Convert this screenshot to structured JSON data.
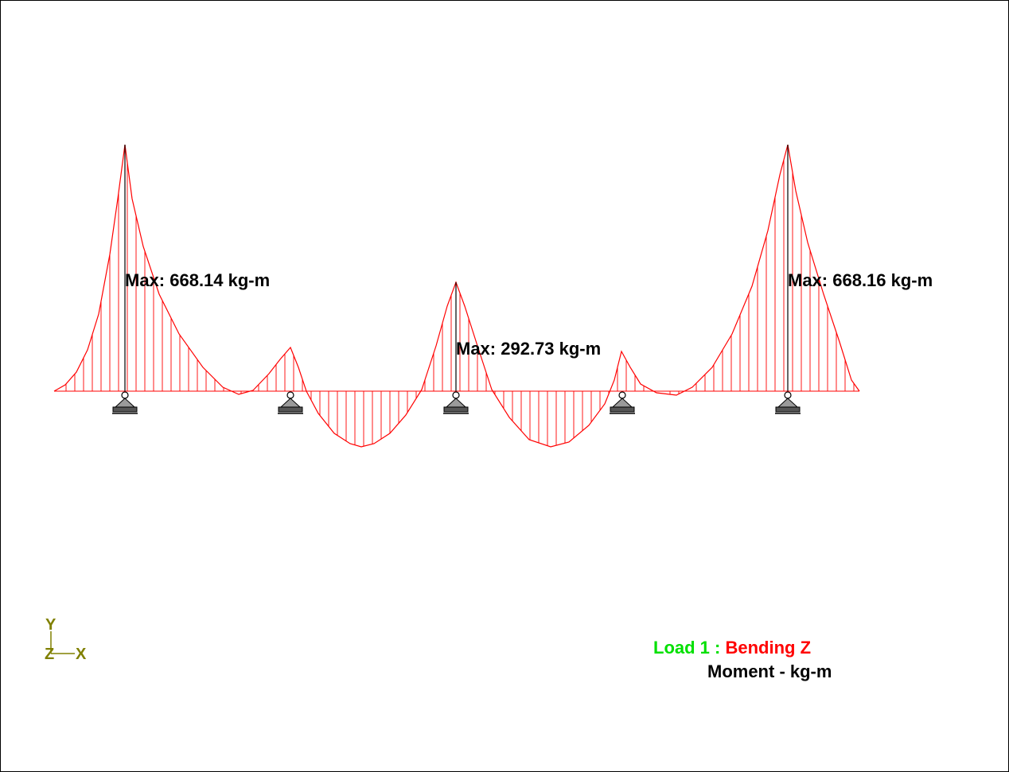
{
  "diagram": {
    "labels": {
      "max_left": "Max: 668.14 kg-m",
      "max_center": "Max: 292.73 kg-m",
      "max_right": "Max: 668.16 kg-m"
    },
    "legend": {
      "load_name": "Load 1 :",
      "result_name": "Bending Z",
      "units_line": "Moment - kg-m"
    },
    "axes": {
      "y": "Y",
      "z": "Z",
      "x": "X"
    },
    "colors": {
      "diagram": "#ff0000",
      "load_text": "#00e000",
      "result_text": "#ff0000",
      "axis_triad": "#808000",
      "member": "#000000"
    }
  }
}
